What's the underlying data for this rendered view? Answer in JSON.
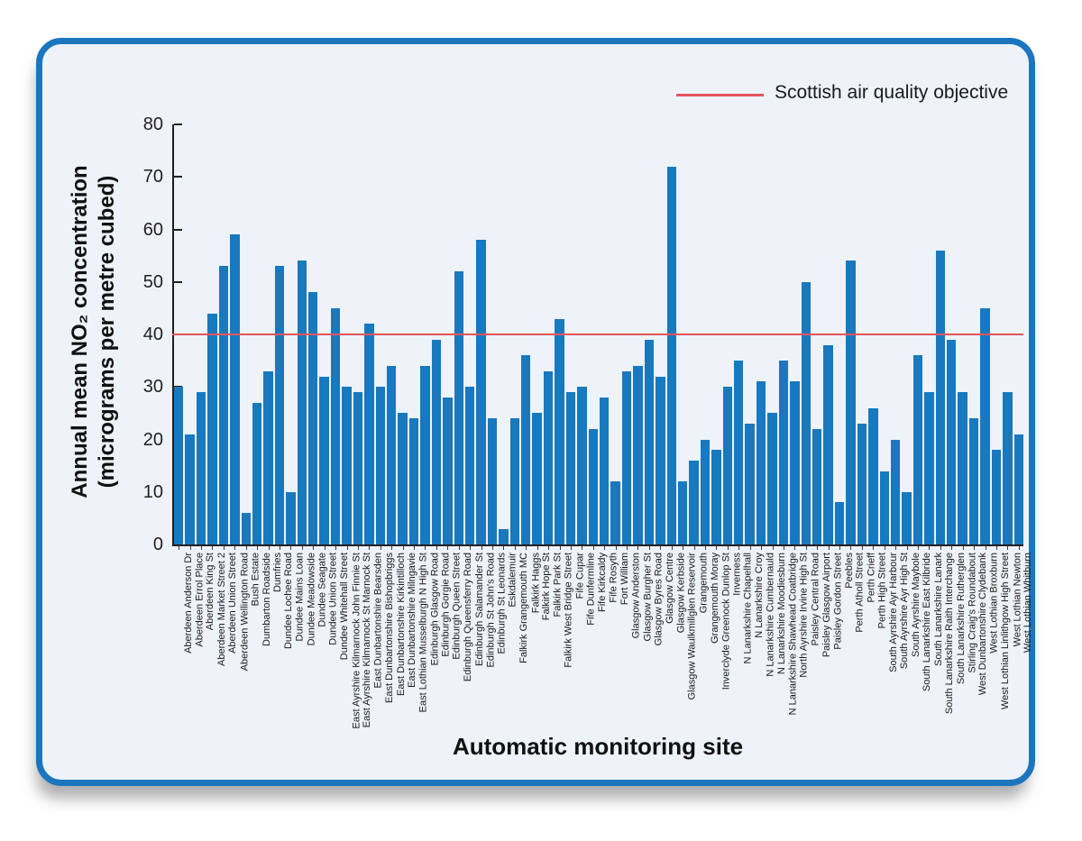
{
  "legend": {
    "label": "Scottish air quality objective",
    "line_color": "#e4555e"
  },
  "colors": {
    "bar": "#1879bf",
    "frame_border": "#1b76bd",
    "plot_background": "#eef2f9",
    "axis": "#231f20",
    "objective_line": "#e4555e"
  },
  "chart_data": {
    "type": "bar",
    "title": "",
    "xlabel": "Automatic monitoring site",
    "ylabel_line1": "Annual mean NO₂ concentration",
    "ylabel_line2": "(micrograms per metre cubed)",
    "ylim": [
      0,
      80
    ],
    "yticks": [
      0,
      10,
      20,
      30,
      40,
      50,
      60,
      70,
      80
    ],
    "grid": false,
    "legend_position": "top-right",
    "reference_line": {
      "value": 40,
      "label": "Scottish air quality objective"
    },
    "categories": [
      "Aberdeen Anderson Dr",
      "Aberdeen Errol Place",
      "Aberdeen King St",
      "Aberdeen Market Street 2",
      "Aberdeen Union Street",
      "Aberdeen Wellington Road",
      "Bush Estate",
      "Dumbarton Roadside",
      "Dumfries",
      "Dundee Lochee Road",
      "Dundee Mains Loan",
      "Dundee Meadowside",
      "Dundee Seagate",
      "Dundee Union Street",
      "Dundee Whitehall Street",
      "East Ayrshire Kilmarnock John Finnie St",
      "East Ayrshire Kilmarnock St Marnock St",
      "East Dunbartonshire Bearsden",
      "East Dunbartonshire Bishopbriggs",
      "East Dunbartonshire Kirkintilloch",
      "East Dunbartonshire Milngavie",
      "East Lothian Musselburgh N High St",
      "Edinburgh Glasgow Road",
      "Edinburgh Gorgie Road",
      "Edinburgh Queen Street",
      "Edinburgh Queensferry Road",
      "Edinburgh Salamander St",
      "Edinburgh St John's Road",
      "Edinburgh St Leonards",
      "Eskdalemuir",
      "Falkirk Grangemouth MC",
      "Falkirk Haggs",
      "Falkirk Hope St",
      "Falkirk Park St",
      "Falkirk West Bridge Street",
      "Fife Cupar",
      "Fife Dunfermline",
      "Fife Kirkcaldy",
      "Fife Rosyth",
      "Fort William",
      "Glasgow Anderston",
      "Glasgow Burgher St",
      "Glasgow Byres Road",
      "Glasgow Centre",
      "Glasgow Kerbside",
      "Glasgow Waulkmillglen Reservoir",
      "Grangemouth",
      "Grangemouth Moray",
      "Inverclyde Greenock Dunlop St",
      "Inverness",
      "N Lanarkshire Chapelhall",
      "N Lanarkshire Croy",
      "N Lanarkshire Cumbernauld",
      "N Lanarkshire Moodiesburn",
      "N Lanarkshire Shawhead Coatbridge",
      "North Ayrshire Irvine High St",
      "Paisley Central Road",
      "Paisley Glasgow Airport",
      "Paisley Gordon Street",
      "Peebles",
      "Perth Atholl Street",
      "Perth Crieff",
      "Perth High Street",
      "South Ayrshire Ayr Harbour",
      "South Ayrshire Ayr High St",
      "South Ayrshire Maybole",
      "South Lanarkshire East Kilbride",
      "South Lanarkshire Lanark",
      "South Lanarkshire Raith Interchange",
      "South Lanarkshire Rutherglen",
      "Stirling Craig's Roundabout",
      "West Dunbartonshire Clydebank",
      "West Lothian Broxburn",
      "West Lothian Linlithgow High Street",
      "West Lothian Newton",
      "West Lothian Whitburn"
    ],
    "values": [
      30,
      21,
      29,
      44,
      53,
      59,
      6,
      27,
      33,
      53,
      10,
      54,
      48,
      32,
      45,
      30,
      29,
      42,
      30,
      34,
      25,
      24,
      34,
      39,
      28,
      52,
      30,
      58,
      24,
      3,
      24,
      36,
      25,
      33,
      43,
      29,
      30,
      22,
      28,
      12,
      33,
      34,
      39,
      32,
      72,
      12,
      16,
      20,
      18,
      30,
      35,
      23,
      31,
      25,
      35,
      31,
      50,
      22,
      38,
      8,
      54,
      23,
      26,
      14,
      20,
      10,
      36,
      29,
      56,
      39,
      29,
      24,
      45,
      18,
      29,
      21
    ]
  }
}
